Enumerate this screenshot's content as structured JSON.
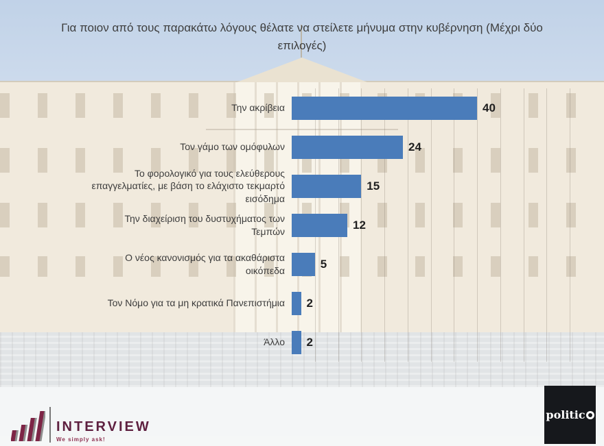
{
  "title": "Για ποιον από τους παρακάτω λόγους θέλατε να στείλετε μήνυμα στην κυβέρνηση (Μέχρι δύο επιλογές)",
  "chart_data": {
    "type": "bar",
    "orientation": "horizontal",
    "title": "Για ποιον από τους παρακάτω λόγους θέλατε να στείλετε μήνυμα στην κυβέρνηση (Μέχρι δύο επιλογές)",
    "categories": [
      "Την ακρίβεια",
      "Τον γάμο των ομόφυλων",
      "Το φορολογικό για τους ελεύθερους επαγγελματίες, με βάση το ελάχιστο τεκμαρτό εισόδημα",
      "Την διαχείριση του δυστυχήματος των Τεμπών",
      "Ο νέος κανονισμός για τα ακαθάριστα οικόπεδα",
      "Τον Νόμο για τα μη κρατικά Πανεπιστήμια",
      "Άλλο"
    ],
    "values": [
      40,
      24,
      15,
      12,
      5,
      2,
      2
    ],
    "xlim": [
      0,
      60
    ],
    "value_axis_max_bar": 40,
    "gridline_step": 5,
    "grid": true,
    "legend": false,
    "bar_color": "#4a7cba",
    "label_color": "#3c3c3c",
    "value_label_color": "#1f1f1f"
  },
  "footer": {
    "interview": {
      "wordmark": "INTERVIEW",
      "tagline": "We simply ask!",
      "brand_color": "#5e2040"
    },
    "politico": {
      "wordmark": "politic",
      "bg_color": "#16181c",
      "text_color": "#ffffff"
    }
  }
}
